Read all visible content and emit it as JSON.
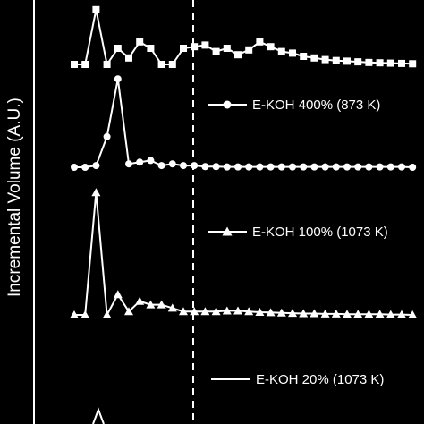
{
  "chart_data": {
    "type": "line",
    "ylabel": "Incremental Volume (A.U.)",
    "xlabel": "",
    "title": "",
    "grid": false,
    "reference_line": {
      "style": "dashed",
      "color": "#ffffff"
    },
    "series": [
      {
        "name": "",
        "marker": "square",
        "x": [
          0,
          1,
          2,
          3,
          4,
          5,
          6,
          7,
          8,
          9,
          10,
          11,
          12,
          13,
          14,
          15,
          16,
          17,
          18,
          19,
          20,
          21,
          22,
          23,
          24,
          25,
          26,
          27,
          28,
          29,
          30,
          31
        ],
        "y": [
          0,
          0,
          1.7,
          0,
          0.5,
          0.2,
          0.7,
          0.5,
          0,
          0,
          0.5,
          0.55,
          0.6,
          0.4,
          0.5,
          0.3,
          0.45,
          0.7,
          0.55,
          0.4,
          0.35,
          0.25,
          0.2,
          0.15,
          0.12,
          0.1,
          0.08,
          0.06,
          0.05,
          0.04,
          0.03,
          0.02
        ]
      },
      {
        "name": "E-KOH 400% (873 K)",
        "marker": "circle",
        "x": [
          0,
          1,
          2,
          3,
          4,
          5,
          6,
          7,
          8,
          9,
          10,
          11,
          12,
          13,
          14,
          15,
          16,
          17,
          18,
          19,
          20,
          21,
          22,
          23,
          24,
          25,
          26,
          27,
          28,
          29,
          30,
          31
        ],
        "y": [
          0,
          0,
          0.05,
          0.9,
          2.6,
          0.1,
          0.15,
          0.2,
          0.05,
          0.1,
          0.05,
          0.05,
          0.02,
          0.02,
          0.01,
          0.01,
          0.01,
          0.01,
          0.01,
          0.01,
          0.01,
          0.01,
          0.01,
          0.01,
          0.01,
          0.01,
          0.01,
          0.01,
          0.01,
          0.01,
          0.01,
          0
        ]
      },
      {
        "name": "E-KOH 100% (1073 K)",
        "marker": "triangle",
        "x": [
          0,
          1,
          2,
          3,
          4,
          5,
          6,
          7,
          8,
          9,
          10,
          11,
          12,
          13,
          14,
          15,
          16,
          17,
          18,
          19,
          20,
          21,
          22,
          23,
          24,
          25,
          26,
          27,
          28,
          29,
          30,
          31
        ],
        "y": [
          0,
          0,
          3.6,
          0,
          0.6,
          0.1,
          0.4,
          0.3,
          0.3,
          0.2,
          0.1,
          0.1,
          0.1,
          0.1,
          0.12,
          0.12,
          0.1,
          0.08,
          0.07,
          0.06,
          0.05,
          0.04,
          0.04,
          0.03,
          0.03,
          0.02,
          0.02,
          0.02,
          0.02,
          0.01,
          0.01,
          0
        ]
      },
      {
        "name": "E-KOH 20% (1073 K)",
        "marker": "none",
        "x": [],
        "y": []
      }
    ]
  }
}
